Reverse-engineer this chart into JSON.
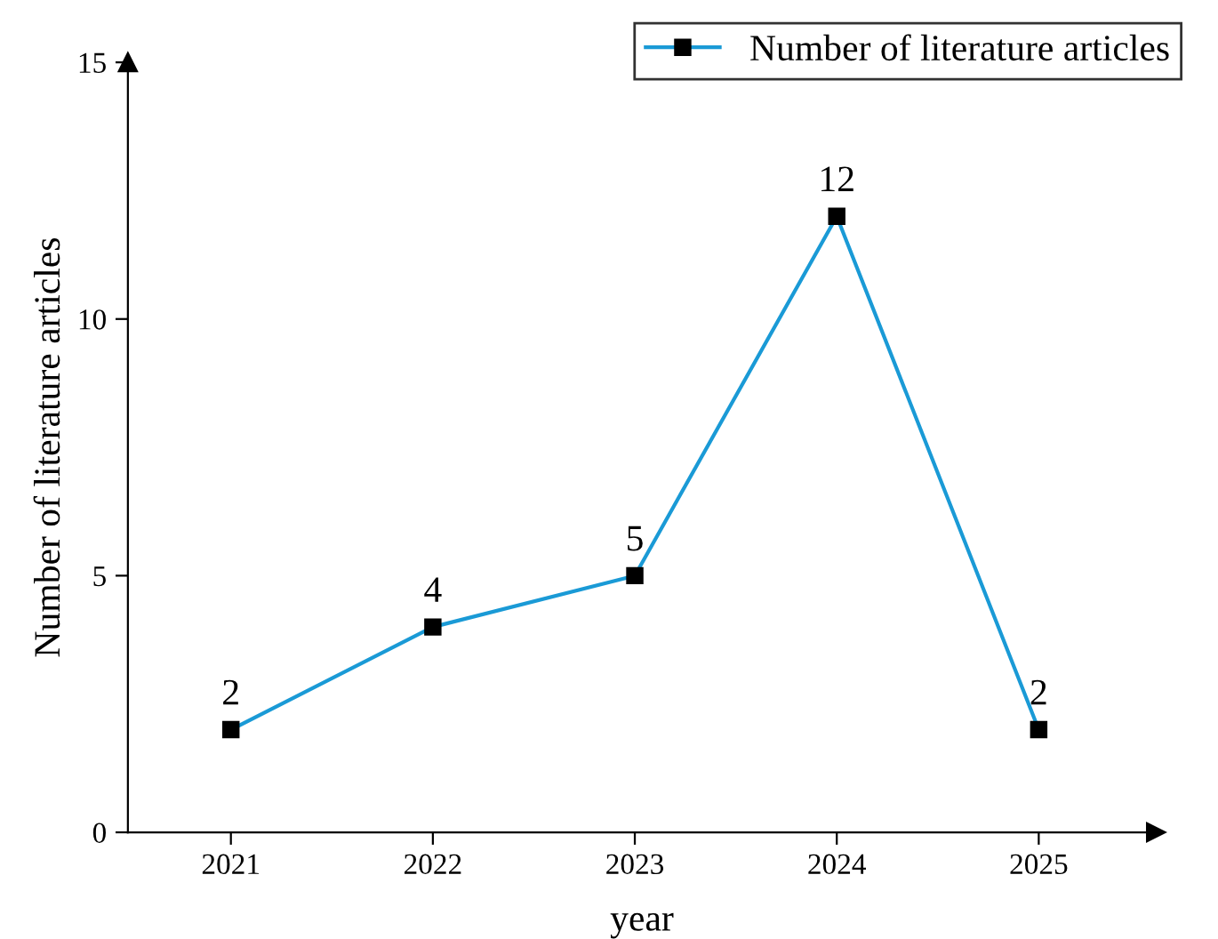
{
  "chart_data": {
    "type": "line",
    "xlabel": "year",
    "ylabel": "Number of literature articles",
    "categories": [
      "2021",
      "2022",
      "2023",
      "2024",
      "2025"
    ],
    "series": [
      {
        "name": "Number of literature articles",
        "color": "#1a9ad6",
        "values": [
          2,
          4,
          5,
          12,
          2
        ]
      }
    ],
    "ylim": [
      0,
      15
    ],
    "yticks": [
      0,
      5,
      10,
      15
    ],
    "marker": "square",
    "data_labels": true,
    "legend": "top right",
    "grid": false
  }
}
